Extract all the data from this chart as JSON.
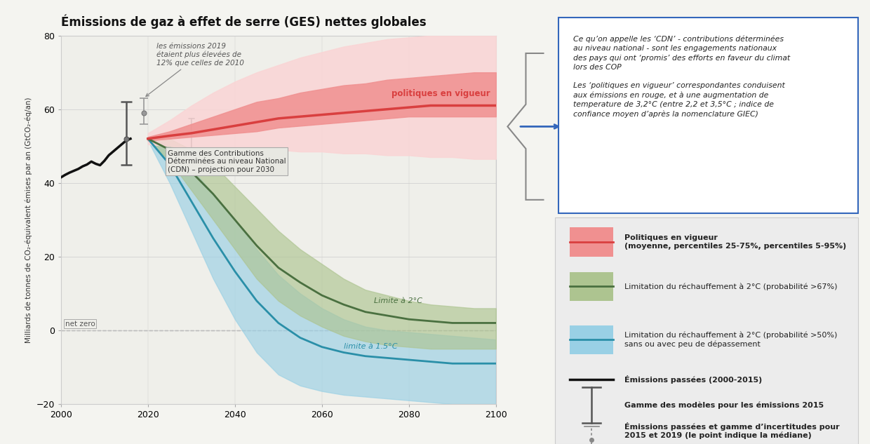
{
  "title": "Émissions de gaz à effet de serre (GES) nettes globales",
  "ylabel": "Milliards de tonnes de CO₂-équivalent émises par an (GtCO₂-éq/an)",
  "xlim": [
    2000,
    2100
  ],
  "ylim": [
    -20,
    80
  ],
  "yticks": [
    -20,
    0,
    20,
    40,
    60,
    80
  ],
  "xticks": [
    2000,
    2020,
    2040,
    2060,
    2080,
    2100
  ],
  "bg_color": "#f4f4f0",
  "plot_bg": "#efefea",
  "hist_x": [
    2000,
    2001,
    2002,
    2003,
    2004,
    2005,
    2006,
    2007,
    2008,
    2009,
    2010,
    2011,
    2012,
    2013,
    2014,
    2015,
    2016
  ],
  "hist_y": [
    41.5,
    42.2,
    42.8,
    43.3,
    43.8,
    44.5,
    45.0,
    45.8,
    45.2,
    44.8,
    46.0,
    47.5,
    48.5,
    49.5,
    50.5,
    51.5,
    52.0
  ],
  "policy_x": [
    2020,
    2025,
    2030,
    2035,
    2040,
    2045,
    2050,
    2055,
    2060,
    2065,
    2070,
    2075,
    2080,
    2085,
    2090,
    2095,
    2100
  ],
  "policy_mean": [
    52.0,
    52.8,
    53.5,
    54.5,
    55.5,
    56.5,
    57.5,
    58.0,
    58.5,
    59.0,
    59.5,
    60.0,
    60.5,
    61.0,
    61.0,
    61.0,
    61.0
  ],
  "policy_p25": [
    51.5,
    52.0,
    52.5,
    53.0,
    53.5,
    54.0,
    55.0,
    55.5,
    56.0,
    56.5,
    57.0,
    57.5,
    58.0,
    58.0,
    58.0,
    58.0,
    58.0
  ],
  "policy_p75": [
    52.5,
    54.0,
    56.0,
    58.0,
    60.0,
    62.0,
    63.0,
    64.5,
    65.5,
    66.5,
    67.0,
    68.0,
    68.5,
    69.0,
    69.5,
    70.0,
    70.0
  ],
  "policy_p5": [
    50.5,
    50.0,
    49.5,
    49.5,
    49.0,
    49.0,
    49.0,
    48.5,
    48.5,
    48.0,
    48.0,
    47.5,
    47.5,
    47.0,
    47.0,
    46.5,
    46.5
  ],
  "policy_p95": [
    53.5,
    57.0,
    61.0,
    64.5,
    67.5,
    70.0,
    72.0,
    74.0,
    75.5,
    77.0,
    78.0,
    79.0,
    79.5,
    80.0,
    80.0,
    80.0,
    80.0
  ],
  "twodeg_x": [
    2020,
    2025,
    2030,
    2035,
    2040,
    2045,
    2050,
    2055,
    2060,
    2065,
    2070,
    2075,
    2080,
    2085,
    2090,
    2095,
    2100
  ],
  "twodeg_mean": [
    52.0,
    49.0,
    43.0,
    37.0,
    30.0,
    23.0,
    17.0,
    13.0,
    9.5,
    7.0,
    5.0,
    4.0,
    3.0,
    2.5,
    2.0,
    2.0,
    2.0
  ],
  "twodeg_low": [
    51.5,
    46.0,
    38.0,
    30.0,
    22.0,
    14.0,
    8.0,
    4.0,
    1.0,
    -1.5,
    -3.0,
    -4.0,
    -4.5,
    -5.0,
    -5.0,
    -5.0,
    -5.0
  ],
  "twodeg_high": [
    52.5,
    52.0,
    49.0,
    45.0,
    39.0,
    33.0,
    27.0,
    22.0,
    18.0,
    14.0,
    11.0,
    9.5,
    8.0,
    7.0,
    6.5,
    6.0,
    6.0
  ],
  "onefive_x": [
    2020,
    2025,
    2030,
    2035,
    2040,
    2045,
    2050,
    2055,
    2060,
    2065,
    2070,
    2075,
    2080,
    2085,
    2090,
    2095,
    2100
  ],
  "onefive_mean": [
    52.0,
    45.0,
    35.0,
    25.0,
    16.0,
    8.0,
    2.0,
    -2.0,
    -4.5,
    -6.0,
    -7.0,
    -7.5,
    -8.0,
    -8.5,
    -9.0,
    -9.0,
    -9.0
  ],
  "onefive_low": [
    51.5,
    40.0,
    27.0,
    14.0,
    3.0,
    -6.0,
    -12.0,
    -15.0,
    -16.5,
    -17.5,
    -18.0,
    -18.5,
    -19.0,
    -19.5,
    -20.0,
    -20.0,
    -20.0
  ],
  "onefive_high": [
    52.5,
    50.0,
    44.0,
    37.0,
    30.0,
    22.0,
    15.0,
    10.0,
    6.0,
    3.0,
    1.0,
    0.0,
    -0.5,
    -1.0,
    -1.5,
    -2.0,
    -2.5
  ],
  "red_color": "#d93f3f",
  "red_fill_mid": "#f09090",
  "red_fill_out": "#fad5d5",
  "green_color": "#4a7040",
  "green_fill": "#adc490",
  "blue_color": "#2a8fa8",
  "blue_fill": "#99d0e5",
  "textbox": "Ce qu’on appelle les ‘CDN’ - contributions déterminées\nau niveau national - sont les engagements nationaux\ndes pays qui ont ‘promis’ des efforts en faveur du climat\nlors des COP\n\nLes ‘politiques en vigueur’ correspondantes conduisent\naux émissions en rouge, et à une augmentation de\ntemperature de 3,2°C (entre 2,2 et 3,5°C ; indice de\nconfiance moyen d’après la nomenclature GIEC)",
  "legend": [
    {
      "label": "Politiques en vigueur\n(moyenne, percentiles 25-75%, percentiles 5-95%)",
      "line": "#d93f3f",
      "fill": "#f09090",
      "type": "band"
    },
    {
      "label": "Limitation du réchauffement à 2°C (probabilité >67%)",
      "line": "#4a7040",
      "fill": "#adc490",
      "type": "band"
    },
    {
      "label": "Limitation du réchauffement à 2°C (probabilité >50%)\nsans ou avec peu de dépassement",
      "line": "#2a8fa8",
      "fill": "#99d0e5",
      "type": "band"
    },
    {
      "label": "Émissions passées (2000-2015)",
      "line": "#111111",
      "fill": null,
      "type": "line"
    },
    {
      "label": "Gamme des modèles pour les émissions 2015",
      "line": "#555555",
      "fill": null,
      "type": "errorbar"
    },
    {
      "label": "Émissions passées et gamme d’incertitudes pour\n2015 et 2019 (le point indique la médiane)",
      "line": "#888888",
      "fill": null,
      "type": "dotted_error"
    }
  ]
}
